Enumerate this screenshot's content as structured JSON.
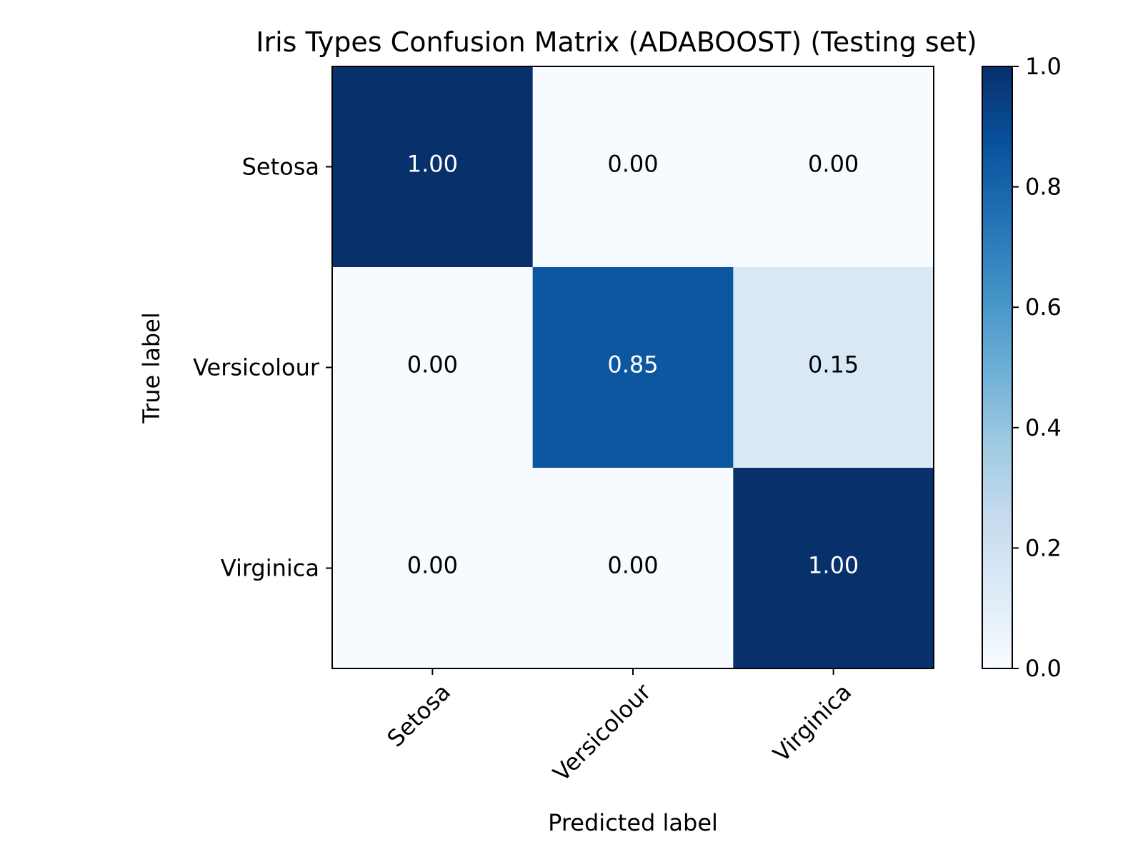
{
  "chart_data": {
    "type": "heatmap",
    "title": "Iris Types Confusion Matrix (ADABOOST) (Testing set)",
    "xlabel": "Predicted label",
    "ylabel": "True label",
    "row_labels": [
      "Setosa",
      "Versicolour",
      "Virginica"
    ],
    "col_labels": [
      "Setosa",
      "Versicolour",
      "Virginica"
    ],
    "values": [
      [
        1.0,
        0.0,
        0.0
      ],
      [
        0.0,
        0.85,
        0.15
      ],
      [
        0.0,
        0.0,
        1.0
      ]
    ],
    "value_labels": [
      [
        "1.00",
        "0.00",
        "0.00"
      ],
      [
        "0.00",
        "0.85",
        "0.15"
      ],
      [
        "0.00",
        "0.00",
        "1.00"
      ]
    ],
    "colormap": "Blues",
    "colorbar": {
      "range": [
        0.0,
        1.0
      ],
      "ticks": [
        0.0,
        0.2,
        0.4,
        0.6,
        0.8,
        1.0
      ],
      "tick_labels": [
        "0.0",
        "0.2",
        "0.4",
        "0.6",
        "0.8",
        "1.0"
      ]
    }
  },
  "colors": {
    "text_dark": "#000000",
    "text_light": "#ffffff",
    "blues": [
      "#f7fbff",
      "#deebf7",
      "#c6dbef",
      "#9ecae1",
      "#6baed6",
      "#4292c6",
      "#2171b5",
      "#08519c",
      "#08306b"
    ]
  }
}
